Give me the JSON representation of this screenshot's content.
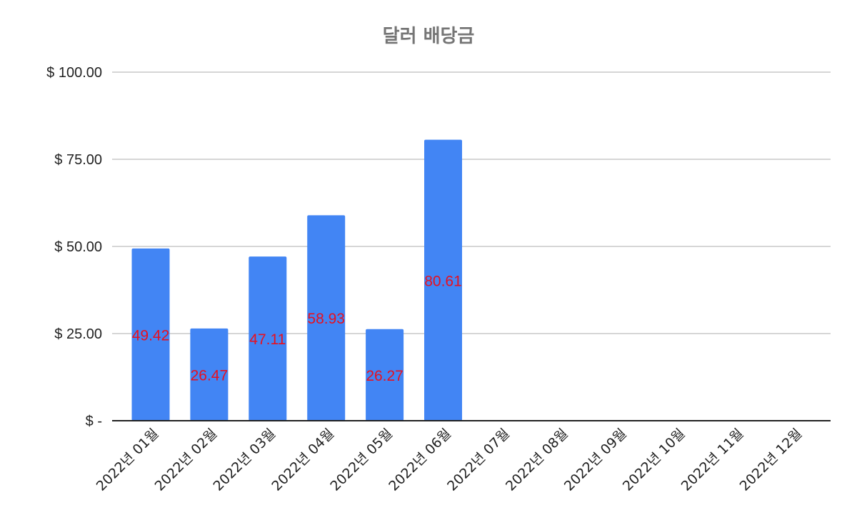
{
  "chart_data": {
    "type": "bar",
    "title": "달러 배당금",
    "xlabel": "",
    "ylabel": "",
    "categories": [
      "2022년 01월",
      "2022년 02월",
      "2022년 03월",
      "2022년 04월",
      "2022년 05월",
      "2022년 06월",
      "2022년 07월",
      "2022년 08월",
      "2022년 09월",
      "2022년 10월",
      "2022년 11월",
      "2022년 12월"
    ],
    "values": [
      49.42,
      26.47,
      47.11,
      58.93,
      26.27,
      80.61,
      0,
      0,
      0,
      0,
      0,
      0
    ],
    "data_labels": [
      "49.42",
      "26.47",
      "47.11",
      "58.93",
      "26.27",
      "80.61",
      "",
      "",
      "",
      "",
      "",
      ""
    ],
    "ylim": [
      0,
      100
    ],
    "yticks": [
      0,
      25,
      50,
      75,
      100
    ],
    "ytick_labels": [
      "$ -",
      "$ 25.00",
      "$ 50.00",
      "$ 75.00",
      "$ 100.00"
    ],
    "grid": true,
    "legend": "none",
    "colors": {
      "bar": "#4285f4",
      "data_label": "#e8101f",
      "grid": "#c8c8c8",
      "axis": "#222222",
      "title": "#757575"
    }
  }
}
